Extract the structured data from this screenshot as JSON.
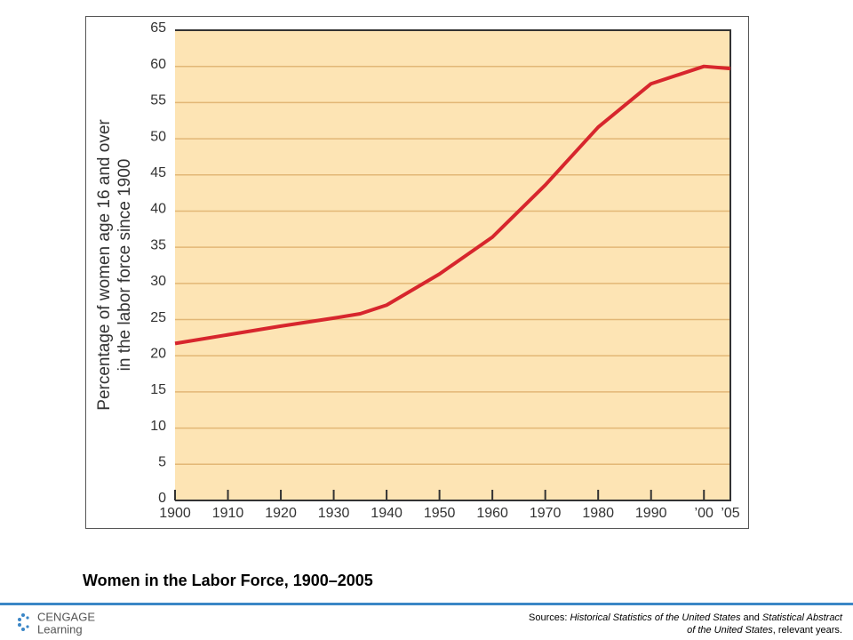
{
  "chart_data": {
    "type": "line",
    "ylabel": [
      "Percentage of women age 16 and over",
      "in the labor force since 1900"
    ],
    "x": [
      1900,
      1910,
      1920,
      1930,
      1935,
      1940,
      1950,
      1960,
      1970,
      1980,
      1990,
      2000,
      2005
    ],
    "values": [
      21.7,
      22.9,
      24.1,
      25.2,
      25.8,
      27.0,
      31.3,
      36.4,
      43.6,
      51.6,
      57.6,
      60.0,
      59.7
    ],
    "color": "#d7262d",
    "xlim": [
      1900,
      2005
    ],
    "xticks": [
      1900,
      1910,
      1920,
      1930,
      1940,
      1950,
      1960,
      1970,
      1980,
      1990,
      {
        "value": 2000,
        "label": "’00"
      },
      {
        "value": 2005,
        "label": "’05"
      }
    ],
    "ylim": [
      0,
      65
    ],
    "yticks": [
      0,
      5,
      10,
      15,
      20,
      25,
      30,
      35,
      40,
      45,
      50,
      55,
      60,
      65
    ],
    "grid": true,
    "title": "Women in the Labor Force, 1900–2005"
  },
  "footer": {
    "logo_top": "CENGAGE",
    "logo_bottom": "Learning",
    "sources": [
      "Sources: ",
      "Historical Statistics of the United States",
      " and ",
      "Statistical Abstract",
      "of the United States",
      ", relevant years."
    ]
  }
}
